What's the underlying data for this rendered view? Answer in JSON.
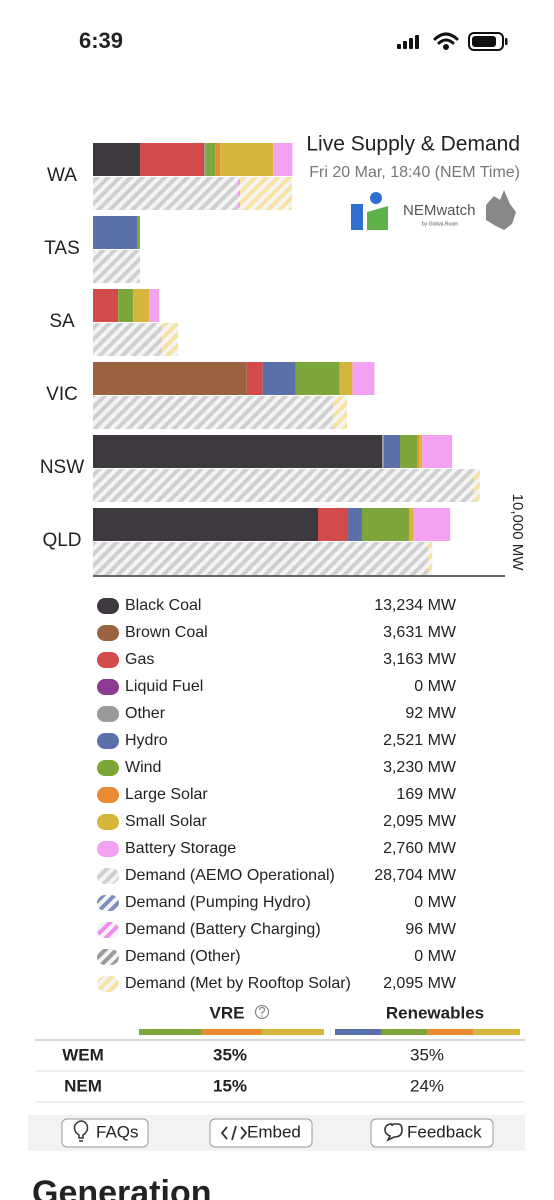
{
  "status_bar": {
    "time": "6:39"
  },
  "logo": {
    "name": "NEMwatch",
    "tagline": "by Global-Roam"
  },
  "chart_data": {
    "type": "bar",
    "orientation": "horizontal",
    "stacked": true,
    "title": "Live Supply & Demand",
    "subtitle": "Fri 20 Mar, 18:40 (NEM Time)",
    "categories": [
      "WA",
      "TAS",
      "SA",
      "VIC",
      "NSW",
      "QLD"
    ],
    "xlim": [
      0,
      10000
    ],
    "xticks": [
      {
        "value": 10000,
        "label": "10,000 MW"
      }
    ],
    "series": [
      {
        "name": "Black Coal",
        "color": "#3d393f",
        "stack": "supply",
        "hatch": false,
        "values": [
          1100,
          0,
          0,
          0,
          6770,
          5270
        ],
        "total_label": "13,234 MW"
      },
      {
        "name": "Brown Coal",
        "color": "#9b6242",
        "stack": "supply",
        "hatch": false,
        "values": [
          0,
          0,
          0,
          3600,
          0,
          0
        ],
        "total_label": "3,631 MW"
      },
      {
        "name": "Gas",
        "color": "#d24a4a",
        "stack": "supply",
        "hatch": false,
        "values": [
          1500,
          0,
          590,
          375,
          0,
          680
        ],
        "total_label": "3,163 MW"
      },
      {
        "name": "Liquid Fuel",
        "color": "#8c3a92",
        "stack": "supply",
        "hatch": false,
        "values": [
          0,
          0,
          0,
          0,
          0,
          0
        ],
        "total_label": "0 MW"
      },
      {
        "name": "Other",
        "color": "#9a9a9a",
        "stack": "supply",
        "hatch": false,
        "values": [
          50,
          0,
          0,
          0,
          45,
          0
        ],
        "total_label": "92 MW"
      },
      {
        "name": "Hydro",
        "color": "#5b70a9",
        "stack": "supply",
        "hatch": false,
        "values": [
          0,
          1030,
          0,
          770,
          375,
          350
        ],
        "total_label": "2,521 MW"
      },
      {
        "name": "Wind",
        "color": "#7ca63a",
        "stack": "supply",
        "hatch": false,
        "values": [
          210,
          70,
          350,
          1030,
          400,
          1100
        ],
        "total_label": "3,230 MW"
      },
      {
        "name": "Large Solar",
        "color": "#e98b32",
        "stack": "supply",
        "hatch": false,
        "values": [
          120,
          0,
          0,
          0,
          50,
          0
        ],
        "total_label": "169 MW"
      },
      {
        "name": "Small Solar",
        "color": "#d5b53c",
        "stack": "supply",
        "hatch": false,
        "values": [
          1240,
          0,
          375,
          300,
          70,
          95
        ],
        "total_label": "2,095 MW"
      },
      {
        "name": "Battery Storage",
        "color": "#f3a2f1",
        "stack": "supply",
        "hatch": false,
        "values": [
          450,
          0,
          235,
          515,
          700,
          870
        ],
        "total_label": "2,760 MW"
      },
      {
        "name": "Demand (AEMO Operational)",
        "color": "#cfcfcf",
        "stack": "demand",
        "hatch": true,
        "values": [
          3400,
          1100,
          1620,
          5620,
          8920,
          7850
        ],
        "total_label": "28,704 MW"
      },
      {
        "name": "Demand (Pumping Hydro)",
        "color": "#7d8fc0",
        "stack": "demand",
        "hatch": true,
        "values": [
          0,
          0,
          0,
          0,
          0,
          0
        ],
        "total_label": "0 MW"
      },
      {
        "name": "Demand (Battery Charging)",
        "color": "#f08ef0",
        "stack": "demand",
        "hatch": true,
        "values": [
          40,
          0,
          0,
          0,
          0,
          0
        ],
        "total_label": "96 MW"
      },
      {
        "name": "Demand (Other)",
        "color": "#9a9a9a",
        "stack": "demand",
        "hatch": true,
        "values": [
          0,
          0,
          0,
          0,
          0,
          0
        ],
        "total_label": "0 MW"
      },
      {
        "name": "Demand (Met by Rooftop Solar)",
        "color": "#f7e3a0",
        "stack": "demand",
        "hatch": true,
        "values": [
          1220,
          0,
          375,
          330,
          140,
          95
        ],
        "total_label": "2,095 MW"
      }
    ]
  },
  "share_table": {
    "headers": [
      "VRE",
      "Renewables"
    ],
    "rows": [
      [
        "WEM",
        "35%",
        "35%"
      ],
      [
        "NEM",
        "15%",
        "24%"
      ]
    ]
  },
  "buttons": [
    "FAQs",
    "Embed",
    "Feedback"
  ],
  "heading": "Generation"
}
